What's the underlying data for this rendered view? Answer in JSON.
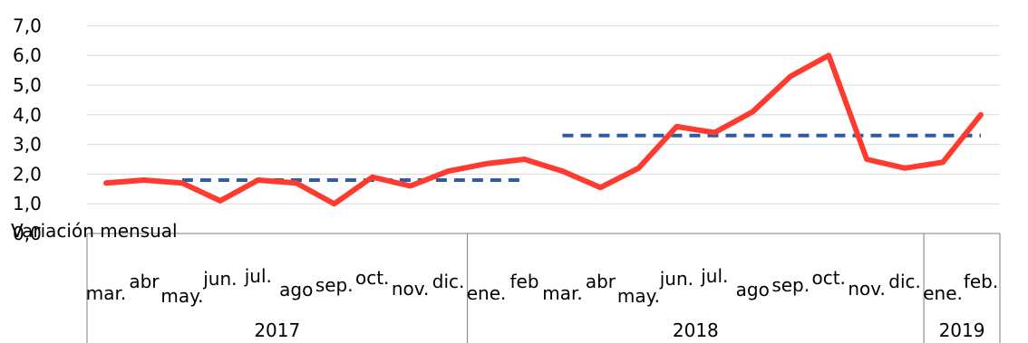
{
  "chart_data": {
    "type": "line",
    "ylabel": "Variación mensual",
    "ylim": [
      0,
      7
    ],
    "yticks": [
      "0,0",
      "1,0",
      "2,0",
      "3,0",
      "4,0",
      "5,0",
      "6,0",
      "7,0"
    ],
    "grid": true,
    "x": [
      "mar.",
      "abr",
      "may.",
      "jun.",
      "jul.",
      "ago",
      "sep.",
      "oct.",
      "nov.",
      "dic.",
      "ene.",
      "feb",
      "mar.",
      "abr",
      "may.",
      "jun.",
      "jul.",
      "ago",
      "sep.",
      "oct.",
      "nov.",
      "dic.",
      "ene.",
      "feb."
    ],
    "groups": [
      {
        "label": "2017",
        "count": 10
      },
      {
        "label": "2018",
        "count": 12
      },
      {
        "label": "2019",
        "count": 2
      }
    ],
    "series": [
      {
        "color": "#ff3b30",
        "style": "solid",
        "values": [
          1.7,
          1.8,
          1.7,
          1.1,
          1.8,
          1.7,
          1.0,
          1.9,
          1.6,
          2.1,
          2.35,
          2.5,
          2.1,
          1.55,
          2.2,
          3.6,
          3.4,
          4.1,
          5.3,
          6.0,
          2.5,
          2.2,
          2.4,
          4.0
        ]
      },
      {
        "color": "#2e5aa8",
        "style": "dashed",
        "segments": [
          {
            "from": 2,
            "to": 11,
            "value": 1.8
          },
          {
            "from": 12,
            "to": 23,
            "value": 3.3
          }
        ]
      }
    ]
  }
}
